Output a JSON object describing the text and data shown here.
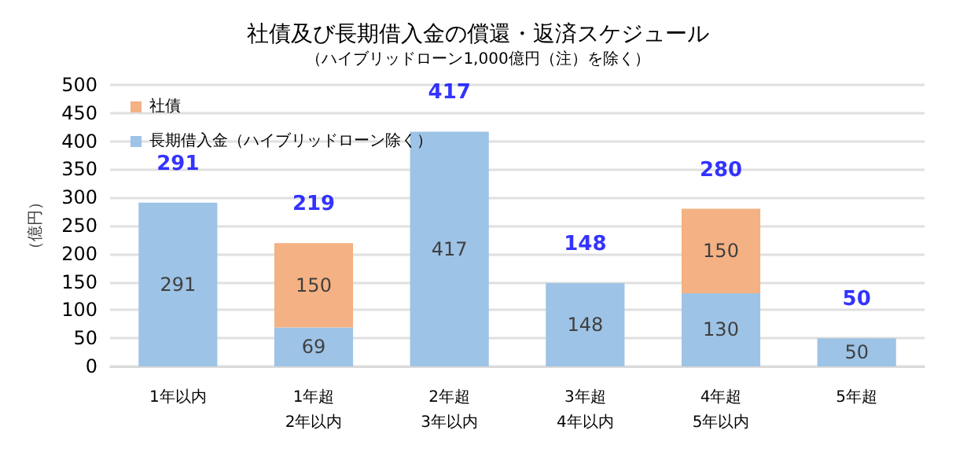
{
  "chart_data": {
    "type": "bar",
    "title": "社債及び長期借入金の償還・返済スケジュール",
    "subtitle": "（ハイブリッドローン1,000億円（注）を除く）",
    "ylabel": "（億円）",
    "categories": [
      "1年以内",
      "1年超\n2年以内",
      "2年超\n3年以内",
      "3年超\n4年以内",
      "4年超\n5年以内",
      "5年超"
    ],
    "stacked": true,
    "series": [
      {
        "name": "長期借入金（ハイブリッドローン除く）",
        "color": "#9dc3e6",
        "values": [
          291,
          69,
          417,
          148,
          130,
          50
        ]
      },
      {
        "name": "社債",
        "color": "#f4b183",
        "values": [
          null,
          150,
          null,
          null,
          150,
          null
        ]
      }
    ],
    "totals": [
      "291",
      "219",
      "417",
      "148",
      "280",
      "50"
    ],
    "data_labels": true,
    "ylim": [
      0,
      500
    ],
    "yticks": [
      0,
      50,
      100,
      150,
      200,
      250,
      300,
      350,
      400,
      450,
      500
    ],
    "grid": "y",
    "legend": "top left"
  }
}
